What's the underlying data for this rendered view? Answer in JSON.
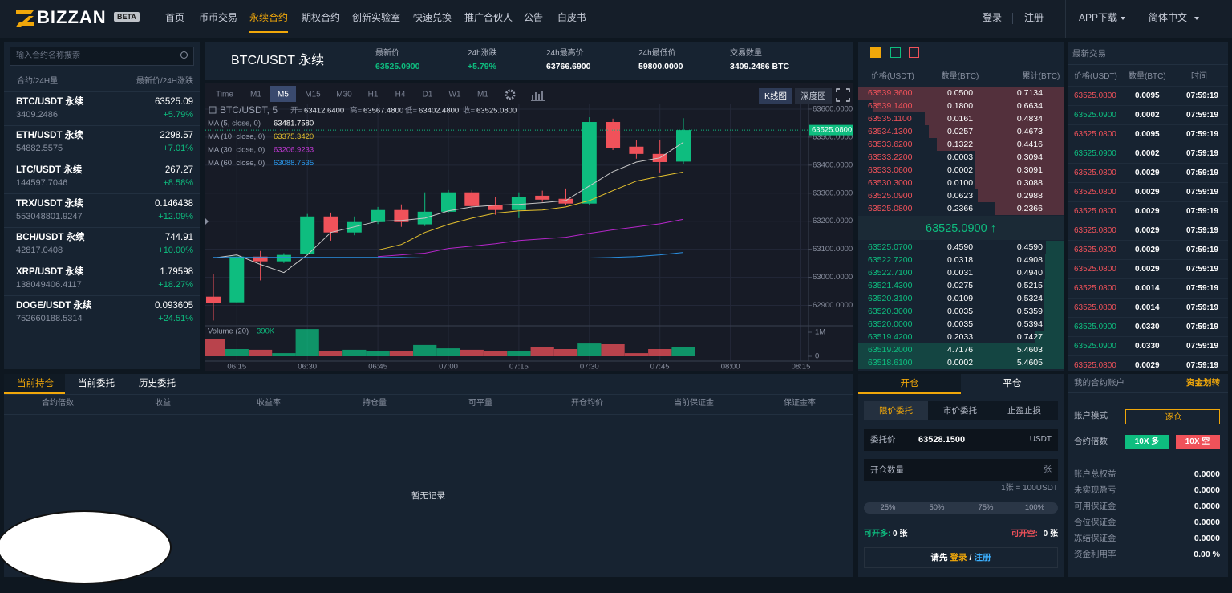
{
  "nav": {
    "logo": "BIZZAN",
    "badge": "BETA",
    "items": [
      "首页",
      "币币交易",
      "永续合约",
      "期权合约",
      "创新实验室",
      "快速兑换",
      "推广合伙人",
      "公告",
      "白皮书"
    ],
    "active": 2,
    "login": "登录",
    "register": "注册",
    "app": "APP下载",
    "language": "简体中文"
  },
  "market": {
    "search_placeholder": "输入合约名称搜索",
    "header_left": "合约/24H量",
    "header_right": "最新价/24H涨跌",
    "rows": [
      {
        "name": "BTC/USDT 永续",
        "volume": "3409.2486",
        "price": "63525.09",
        "change": "+5.79%"
      },
      {
        "name": "ETH/USDT 永续",
        "volume": "54882.5575",
        "price": "2298.57",
        "change": "+7.01%"
      },
      {
        "name": "LTC/USDT 永续",
        "volume": "144597.7046",
        "price": "267.27",
        "change": "+8.58%"
      },
      {
        "name": "TRX/USDT 永续",
        "volume": "553048801.9247",
        "price": "0.146438",
        "change": "+12.09%"
      },
      {
        "name": "BCH/USDT 永续",
        "volume": "42817.0408",
        "price": "744.91",
        "change": "+10.00%"
      },
      {
        "name": "XRP/USDT 永续",
        "volume": "138049406.4117",
        "price": "1.79598",
        "change": "+18.27%"
      },
      {
        "name": "DOGE/USDT 永续",
        "volume": "752660188.5314",
        "price": "0.093605",
        "change": "+24.51%"
      }
    ],
    "change_color": "#0ebd7f"
  },
  "ticker": {
    "symbol": "BTC/USDT 永续",
    "stats": [
      {
        "label": "最新价",
        "value": "63525.0900",
        "color": "#0ebd7f"
      },
      {
        "label": "24h涨跌",
        "value": "+5.79%",
        "color": "#0ebd7f"
      },
      {
        "label": "24h最高价",
        "value": "63766.6900",
        "color": "#ffffff"
      },
      {
        "label": "24h最低价",
        "value": "59800.0000",
        "color": "#ffffff"
      },
      {
        "label": "交易数量",
        "value": "3409.2486 BTC",
        "color": "#ffffff"
      }
    ]
  },
  "chart_data": {
    "type": "candlestick",
    "symbol": "BTC/USDT, 5",
    "ohlc_legend": [
      {
        "label": "开=",
        "value": "63412.6400"
      },
      {
        "label": "高=",
        "value": "63567.4800"
      },
      {
        "label": "低=",
        "value": "63402.4800"
      },
      {
        "label": "收=",
        "value": "63525.0800"
      }
    ],
    "toolbar": {
      "intervals": [
        "Time",
        "M1",
        "M5",
        "M15",
        "M30",
        "H1",
        "H4",
        "D1",
        "W1",
        "M1"
      ],
      "active": 2,
      "kline": "K线图",
      "depth": "深度图"
    },
    "categories": [
      null,
      "06:15",
      null,
      null,
      "06:30",
      null,
      null,
      "06:45",
      null,
      null,
      "07:00",
      null,
      null,
      "07:15",
      null,
      null,
      "07:30",
      null,
      null,
      "07:45",
      null,
      null,
      "08:00",
      null,
      null,
      "08:15"
    ],
    "open": [
      62931,
      62911,
      63074,
      63057,
      63083,
      63217,
      63160,
      63197,
      63240,
      63189,
      63234,
      63303,
      63257,
      63240,
      63291,
      63280,
      63263,
      63554,
      63466,
      63440,
      63412.64,
      null,
      null,
      null,
      null,
      null
    ],
    "high": [
      63011,
      63080,
      63094,
      63086,
      63226,
      63231,
      63217,
      63251,
      63260,
      63303,
      63311,
      63311,
      63286,
      63303,
      63309,
      63317,
      63571,
      63566,
      63489,
      63489,
      63567.48,
      null,
      null,
      null,
      null,
      null
    ],
    "low": [
      62846,
      62909,
      62989,
      63051,
      63080,
      63131,
      63150,
      63190,
      63180,
      63183,
      63230,
      63240,
      63223,
      63211,
      63269,
      63257,
      63257,
      63454,
      63423,
      63374,
      63402.48,
      null,
      null,
      null,
      null,
      null
    ],
    "close": [
      62909,
      63074,
      63057,
      63080,
      63217,
      63160,
      63197,
      63240,
      63197,
      63234,
      63303,
      63254,
      63240,
      63286,
      63277,
      63263,
      63554,
      63460,
      63440,
      63411,
      63525.08,
      null,
      null,
      null,
      null,
      null
    ],
    "up_color": "#0ebd7f",
    "down_color": "#f0525a",
    "ylim": [
      62830,
      63617
    ],
    "yticks": [
      {
        "value": 63600,
        "label": "63600.0000"
      },
      {
        "value": 63500,
        "label": "63500.0000"
      },
      {
        "value": 63400,
        "label": "63400.0000"
      },
      {
        "value": 63300,
        "label": "63300.0000"
      },
      {
        "value": 63200,
        "label": "63200.0000"
      },
      {
        "value": 63100,
        "label": "63100.0000"
      },
      {
        "value": 63000,
        "label": "63000.0000"
      },
      {
        "value": 62900,
        "label": "62900.0000"
      }
    ],
    "last_price_label": "63525.0800",
    "grid": true,
    "ma": [
      {
        "name": "MA (5, close, 0)",
        "color": "#c8c8c8",
        "label_color": "#ffffff",
        "values": [
          63069,
          63080,
          63046,
          63017,
          63080,
          63160,
          63180,
          63200,
          63203,
          63211,
          63237,
          63251,
          63257,
          63260,
          63266,
          63274,
          63326,
          63377,
          63411,
          63426,
          63481.758,
          null,
          null,
          null,
          null,
          null
        ],
        "value_labels": [
          null,
          null,
          null,
          null,
          null,
          null,
          null,
          null,
          null,
          null,
          null,
          null,
          null,
          null,
          null,
          null,
          null,
          null,
          null,
          null,
          "63481.7580",
          null,
          null,
          null,
          null,
          null
        ]
      },
      {
        "name": "MA (10, close, 0)",
        "color": "#e5c12e",
        "label_color": "#e5c12e",
        "values": [
          null,
          null,
          null,
          null,
          null,
          null,
          null,
          63097,
          63117,
          63160,
          63189,
          63211,
          63229,
          63237,
          63240,
          63251,
          63274,
          63309,
          63343,
          63360,
          63375.342,
          null,
          null,
          null,
          null,
          null
        ],
        "value_labels": [
          null,
          null,
          null,
          null,
          null,
          null,
          null,
          null,
          null,
          null,
          null,
          null,
          null,
          null,
          null,
          null,
          null,
          null,
          null,
          null,
          "63375.3420",
          null,
          null,
          null,
          null,
          null
        ]
      },
      {
        "name": "MA (30, close, 0)",
        "color": "#b526c9",
        "label_color": "#c33ad6",
        "values": [
          null,
          null,
          null,
          null,
          null,
          null,
          null,
          63074,
          63080,
          63086,
          63103,
          63111,
          63120,
          63131,
          63137,
          63143,
          63157,
          63169,
          63180,
          63191,
          63206.9233,
          null,
          null,
          null,
          null,
          null
        ],
        "value_labels": [
          null,
          null,
          null,
          null,
          null,
          null,
          null,
          null,
          null,
          null,
          null,
          null,
          null,
          null,
          null,
          null,
          null,
          null,
          null,
          null,
          "63206.9233",
          null,
          null,
          null,
          null,
          null
        ]
      },
      {
        "name": "MA (60, close, 0)",
        "color": "#2a8fe0",
        "label_color": "#2a9af0",
        "values": [
          63071,
          63071,
          63071,
          63071,
          63071,
          63071,
          63071,
          63071,
          63071,
          63069,
          63069,
          63069,
          63069,
          63069,
          63069,
          63069,
          63069,
          63071,
          63074,
          63080,
          63088.7535,
          null,
          null,
          null,
          null,
          null
        ],
        "value_labels": [
          null,
          null,
          null,
          null,
          null,
          null,
          null,
          null,
          null,
          null,
          null,
          null,
          null,
          null,
          null,
          null,
          null,
          null,
          null,
          null,
          "63088.7535",
          null,
          null,
          null,
          null,
          null
        ]
      }
    ],
    "volume": {
      "name": "Volume (20)",
      "values": [
        730000,
        300000,
        270000,
        130000,
        1130000,
        230000,
        270000,
        230000,
        230000,
        470000,
        330000,
        270000,
        230000,
        230000,
        370000,
        300000,
        530000,
        500000,
        130000,
        300000,
        390000,
        null,
        null,
        null,
        null,
        null
      ],
      "value_labels": [
        null,
        null,
        null,
        null,
        null,
        null,
        null,
        null,
        null,
        null,
        null,
        null,
        null,
        null,
        null,
        null,
        null,
        null,
        null,
        null,
        "390K",
        null,
        null,
        null,
        null,
        null
      ],
      "ylim": [
        0,
        1250000
      ],
      "yticks": [
        0,
        {
          "value": 1000000,
          "label": "1M"
        }
      ]
    }
  },
  "orderbook": {
    "headers": [
      "价格(USDT)",
      "数量(BTC)",
      "累计(BTC)"
    ],
    "ask_color": "#f0525a",
    "bid_color": "#0ebd7f",
    "asks": [
      [
        "63539.3600",
        "0.0500",
        "0.7134"
      ],
      [
        "63539.1400",
        "0.1800",
        "0.6634"
      ],
      [
        "63535.1100",
        "0.0161",
        "0.4834"
      ],
      [
        "63534.1300",
        "0.0257",
        "0.4673"
      ],
      [
        "63533.6200",
        "0.1322",
        "0.4416"
      ],
      [
        "63533.2200",
        "0.0003",
        "0.3094"
      ],
      [
        "63533.0600",
        "0.0002",
        "0.3091"
      ],
      [
        "63530.3000",
        "0.0100",
        "0.3088"
      ],
      [
        "63525.0900",
        "0.0623",
        "0.2988"
      ],
      [
        "63525.0800",
        "0.2366",
        "0.2366"
      ]
    ],
    "mid": "63525.0900 ↑",
    "bids": [
      [
        "63525.0700",
        "0.4590",
        "0.4590"
      ],
      [
        "63522.7200",
        "0.0318",
        "0.4908"
      ],
      [
        "63522.7100",
        "0.0031",
        "0.4940"
      ],
      [
        "63521.4300",
        "0.0275",
        "0.5215"
      ],
      [
        "63520.3100",
        "0.0109",
        "0.5324"
      ],
      [
        "63520.3000",
        "0.0035",
        "0.5359"
      ],
      [
        "63520.0000",
        "0.0035",
        "0.5394"
      ],
      [
        "63519.4200",
        "0.2033",
        "0.7427"
      ],
      [
        "63519.2000",
        "4.7176",
        "5.4603"
      ],
      [
        "63518.6100",
        "0.0002",
        "5.4605"
      ]
    ]
  },
  "trades": {
    "title": "最新交易",
    "headers": [
      "价格(USDT)",
      "数量(BTC)",
      "时间"
    ],
    "rows": [
      {
        "price": "63525.0800",
        "amount": "0.0095",
        "time": "07:59:19",
        "color": "#f0525a"
      },
      {
        "price": "63525.0900",
        "amount": "0.0002",
        "time": "07:59:19",
        "color": "#0ebd7f"
      },
      {
        "price": "63525.0800",
        "amount": "0.0095",
        "time": "07:59:19",
        "color": "#f0525a"
      },
      {
        "price": "63525.0900",
        "amount": "0.0002",
        "time": "07:59:19",
        "color": "#0ebd7f"
      },
      {
        "price": "63525.0800",
        "amount": "0.0029",
        "time": "07:59:19",
        "color": "#f0525a"
      },
      {
        "price": "63525.0800",
        "amount": "0.0029",
        "time": "07:59:19",
        "color": "#f0525a"
      },
      {
        "price": "63525.0800",
        "amount": "0.0029",
        "time": "07:59:19",
        "color": "#f0525a"
      },
      {
        "price": "63525.0800",
        "amount": "0.0029",
        "time": "07:59:19",
        "color": "#f0525a"
      },
      {
        "price": "63525.0800",
        "amount": "0.0029",
        "time": "07:59:19",
        "color": "#f0525a"
      },
      {
        "price": "63525.0800",
        "amount": "0.0029",
        "time": "07:59:19",
        "color": "#f0525a"
      },
      {
        "price": "63525.0800",
        "amount": "0.0014",
        "time": "07:59:19",
        "color": "#f0525a"
      },
      {
        "price": "63525.0800",
        "amount": "0.0014",
        "time": "07:59:19",
        "color": "#f0525a"
      },
      {
        "price": "63525.0900",
        "amount": "0.0330",
        "time": "07:59:19",
        "color": "#0ebd7f"
      },
      {
        "price": "63525.0900",
        "amount": "0.0330",
        "time": "07:59:19",
        "color": "#0ebd7f"
      },
      {
        "price": "63525.0800",
        "amount": "0.0029",
        "time": "07:59:19",
        "color": "#f0525a"
      }
    ]
  },
  "positions": {
    "tabs": [
      "当前持仓",
      "当前委托",
      "历史委托"
    ],
    "active": 0,
    "columns": [
      "合约倍数",
      "收益",
      "收益率",
      "持仓量",
      "可平量",
      "开仓均价",
      "当前保证金",
      "保证金率"
    ],
    "empty": "暂无记录"
  },
  "trade_form": {
    "tabs": [
      "开仓",
      "平仓"
    ],
    "active": 0,
    "order_types": [
      "限价委托",
      "市价委托",
      "止盈止损"
    ],
    "active_type": 0,
    "price_label": "委托价",
    "price_value": "63528.1500",
    "price_unit": "USDT",
    "amount_label": "开仓数量",
    "amount_unit": "张",
    "contract_note": "1张 = 100USDT",
    "percents": [
      "25%",
      "50%",
      "75%",
      "100%"
    ],
    "long_label": "可开多:",
    "long_value": "0 张",
    "short_label": "可开空:",
    "short_value": "0 张",
    "login_prompt": "请先",
    "login": "登录",
    "separator": "/",
    "register": "注册"
  },
  "account": {
    "title": "我的合约账户",
    "transfer": "资金划转",
    "mode_label": "账户模式",
    "mode": "逐仓",
    "leverage_label": "合约倍数",
    "long": "10X 多",
    "short": "10X 空",
    "rows": [
      {
        "label": "账户总权益",
        "value": "0.0000"
      },
      {
        "label": "未实现盈亏",
        "value": "0.0000"
      },
      {
        "label": "可用保证金",
        "value": "0.0000"
      },
      {
        "label": "合位保证金",
        "value": "0.0000"
      },
      {
        "label": "冻结保证金",
        "value": "0.0000"
      },
      {
        "label": "资金利用率",
        "value": "0.00 %"
      }
    ]
  }
}
